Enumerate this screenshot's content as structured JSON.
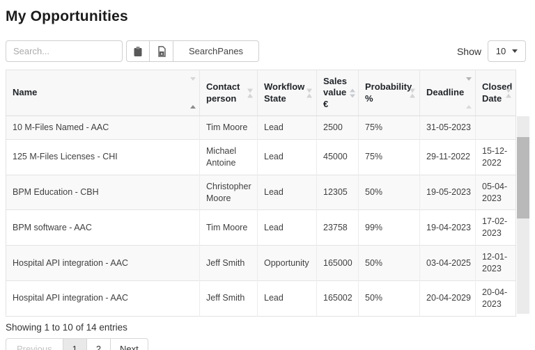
{
  "page": {
    "title": "My Opportunities"
  },
  "toolbar": {
    "search": {
      "placeholder": "Search..."
    },
    "export_buttons": [
      {
        "key": "copy",
        "icon": "clipboard-icon"
      },
      {
        "key": "excel",
        "icon": "excel-file-icon"
      }
    ],
    "searchpanes_label": "SearchPanes",
    "length_menu": {
      "label": "Show",
      "selected": "10",
      "icon": "caret-down-icon"
    }
  },
  "table": {
    "columns": [
      {
        "key": "name",
        "label": "Name",
        "sort": "asc"
      },
      {
        "key": "contact-person",
        "label": "Contact person",
        "sort": "unsorted"
      },
      {
        "key": "workflow-state",
        "label": "Workflow State",
        "sort": "unsorted"
      },
      {
        "key": "sales-value",
        "label": "Sales value €",
        "sort": "both"
      },
      {
        "key": "probability",
        "label": "Probability %",
        "sort": "unsorted"
      },
      {
        "key": "deadline",
        "label": "Deadline",
        "sort": "desc"
      },
      {
        "key": "closed-date",
        "label": "Closed Date",
        "sort": "unsorted"
      }
    ],
    "rows": [
      [
        "10 M-Files Named - AAC",
        "Tim Moore",
        "Lead",
        "2500",
        "75%",
        "31-05-2023",
        ""
      ],
      [
        "125 M-Files Licenses - CHI",
        "Michael Antoine",
        "Lead",
        "45000",
        "75%",
        "29-11-2022",
        "15-12-2022"
      ],
      [
        "BPM Education - CBH",
        "Christopher Moore",
        "Lead",
        "12305",
        "50%",
        "19-05-2023",
        "05-04-2023"
      ],
      [
        "BPM software - AAC",
        "Tim Moore",
        "Lead",
        "23758",
        "99%",
        "19-04-2023",
        "17-02-2023"
      ],
      [
        "Hospital API integration - AAC",
        "Jeff Smith",
        "Opportunity",
        "165000",
        "50%",
        "03-04-2025",
        "12-01-2023"
      ],
      [
        "Hospital API integration - AAC",
        "Jeff Smith",
        "Lead",
        "165002",
        "50%",
        "20-04-2029",
        "20-04-2023"
      ]
    ]
  },
  "footer": {
    "info": "Showing 1 to 10 of 14 entries",
    "pagination": [
      {
        "label": "Previous",
        "state": "disabled"
      },
      {
        "label": "1",
        "state": "active"
      },
      {
        "label": "2",
        "state": "default"
      },
      {
        "label": "Next",
        "state": "default"
      }
    ]
  },
  "colors": {
    "header_bg": "#f8f8f8",
    "stripe_bg": "#f9f9f9",
    "border": "#e2e2e2",
    "sort_active": "#8b8b8b",
    "sort_inactive": "#d4d4d4",
    "scrollbar_thumb": "#b9b9b9",
    "active_page_bg": "#e9e9e9"
  }
}
